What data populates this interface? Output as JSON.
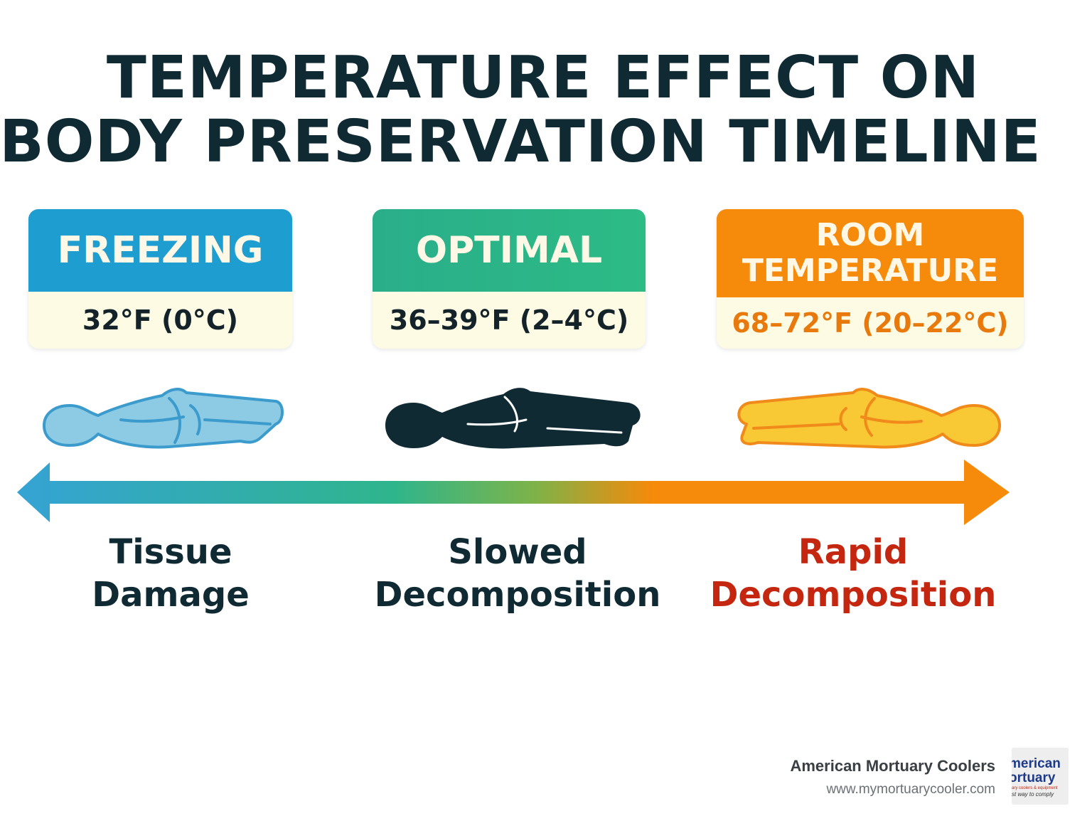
{
  "title": {
    "line1": "TEMPERATURE EFFECT ON",
    "line2": "BODY PRESERVATION TIMELINE"
  },
  "cards": [
    {
      "label": "FREEZING",
      "temperature": "32°F (0°C)",
      "color": "#1e9ed0"
    },
    {
      "label": "OPTIMAL",
      "temperature": "36–39°F (2–4°C)",
      "color": "#2bb488"
    },
    {
      "label_line1": "ROOM",
      "label_line2": "TEMPERATURE",
      "temperature": "68–72°F (20–22°C)",
      "color": "#f58a0b"
    }
  ],
  "outcomes": [
    {
      "line1": "Tissue",
      "line2": "Damage",
      "color": "#102a33"
    },
    {
      "line1": "Slowed",
      "line2": "Decomposition",
      "color": "#102a33"
    },
    {
      "line1": "Rapid",
      "line2": "Decomposition",
      "color": "#c4260f"
    }
  ],
  "figures": [
    {
      "icon": "frozen-body-icon",
      "color": "#8ccbe3"
    },
    {
      "icon": "optimal-body-icon",
      "color": "#0f2a33"
    },
    {
      "icon": "warm-body-icon",
      "color": "#f9c935"
    }
  ],
  "arrow": {
    "icon": "double-arrow-icon",
    "gradient": [
      "#35a3d4",
      "#2fb58c",
      "#f58a0b"
    ]
  },
  "brand": {
    "name": "American Mortuary Coolers",
    "url": "www.mymortuarycooler.com",
    "logo_text": [
      "merican",
      "ortuary",
      "ary coolers & equipment",
      "st way to comply"
    ]
  }
}
